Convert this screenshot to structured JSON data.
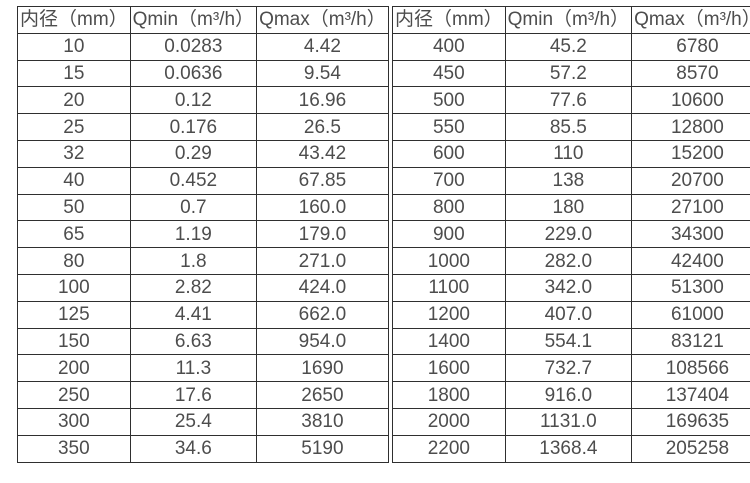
{
  "page": {
    "background_color": "#ffffff",
    "border_color": "#2f2f2f",
    "text_color": "#4d4d4d"
  },
  "tables": [
    {
      "name": "small-diameter-flow-table",
      "headers": [
        "内径（mm）",
        "Qmin（m³/h）",
        "Qmax（m³/h）"
      ],
      "rows": [
        [
          "10",
          "0.0283",
          "4.42"
        ],
        [
          "15",
          "0.0636",
          "9.54"
        ],
        [
          "20",
          "0.12",
          "16.96"
        ],
        [
          "25",
          "0.176",
          "26.5"
        ],
        [
          "32",
          "0.29",
          "43.42"
        ],
        [
          "40",
          "0.452",
          "67.85"
        ],
        [
          "50",
          "0.7",
          "160.0"
        ],
        [
          "65",
          "1.19",
          "179.0"
        ],
        [
          "80",
          "1.8",
          "271.0"
        ],
        [
          "100",
          "2.82",
          "424.0"
        ],
        [
          "125",
          "4.41",
          "662.0"
        ],
        [
          "150",
          "6.63",
          "954.0"
        ],
        [
          "200",
          "11.3",
          "1690"
        ],
        [
          "250",
          "17.6",
          "2650"
        ],
        [
          "300",
          "25.4",
          "3810"
        ],
        [
          "350",
          "34.6",
          "5190"
        ]
      ]
    },
    {
      "name": "large-diameter-flow-table",
      "headers": [
        "内径（mm）",
        "Qmin（m³/h）",
        "Qmax（m³/h）"
      ],
      "rows": [
        [
          "400",
          "45.2",
          "6780"
        ],
        [
          "450",
          "57.2",
          "8570"
        ],
        [
          "500",
          "77.6",
          "10600"
        ],
        [
          "550",
          "85.5",
          "12800"
        ],
        [
          "600",
          "110",
          "15200"
        ],
        [
          "700",
          "138",
          "20700"
        ],
        [
          "800",
          "180",
          "27100"
        ],
        [
          "900",
          "229.0",
          "34300"
        ],
        [
          "1000",
          "282.0",
          "42400"
        ],
        [
          "1100",
          "342.0",
          "51300"
        ],
        [
          "1200",
          "407.0",
          "61000"
        ],
        [
          "1400",
          "554.1",
          "83121"
        ],
        [
          "1600",
          "732.7",
          "108566"
        ],
        [
          "1800",
          "916.0",
          "137404"
        ],
        [
          "2000",
          "1131.0",
          "169635"
        ],
        [
          "2200",
          "1368.4",
          "205258"
        ]
      ]
    }
  ]
}
